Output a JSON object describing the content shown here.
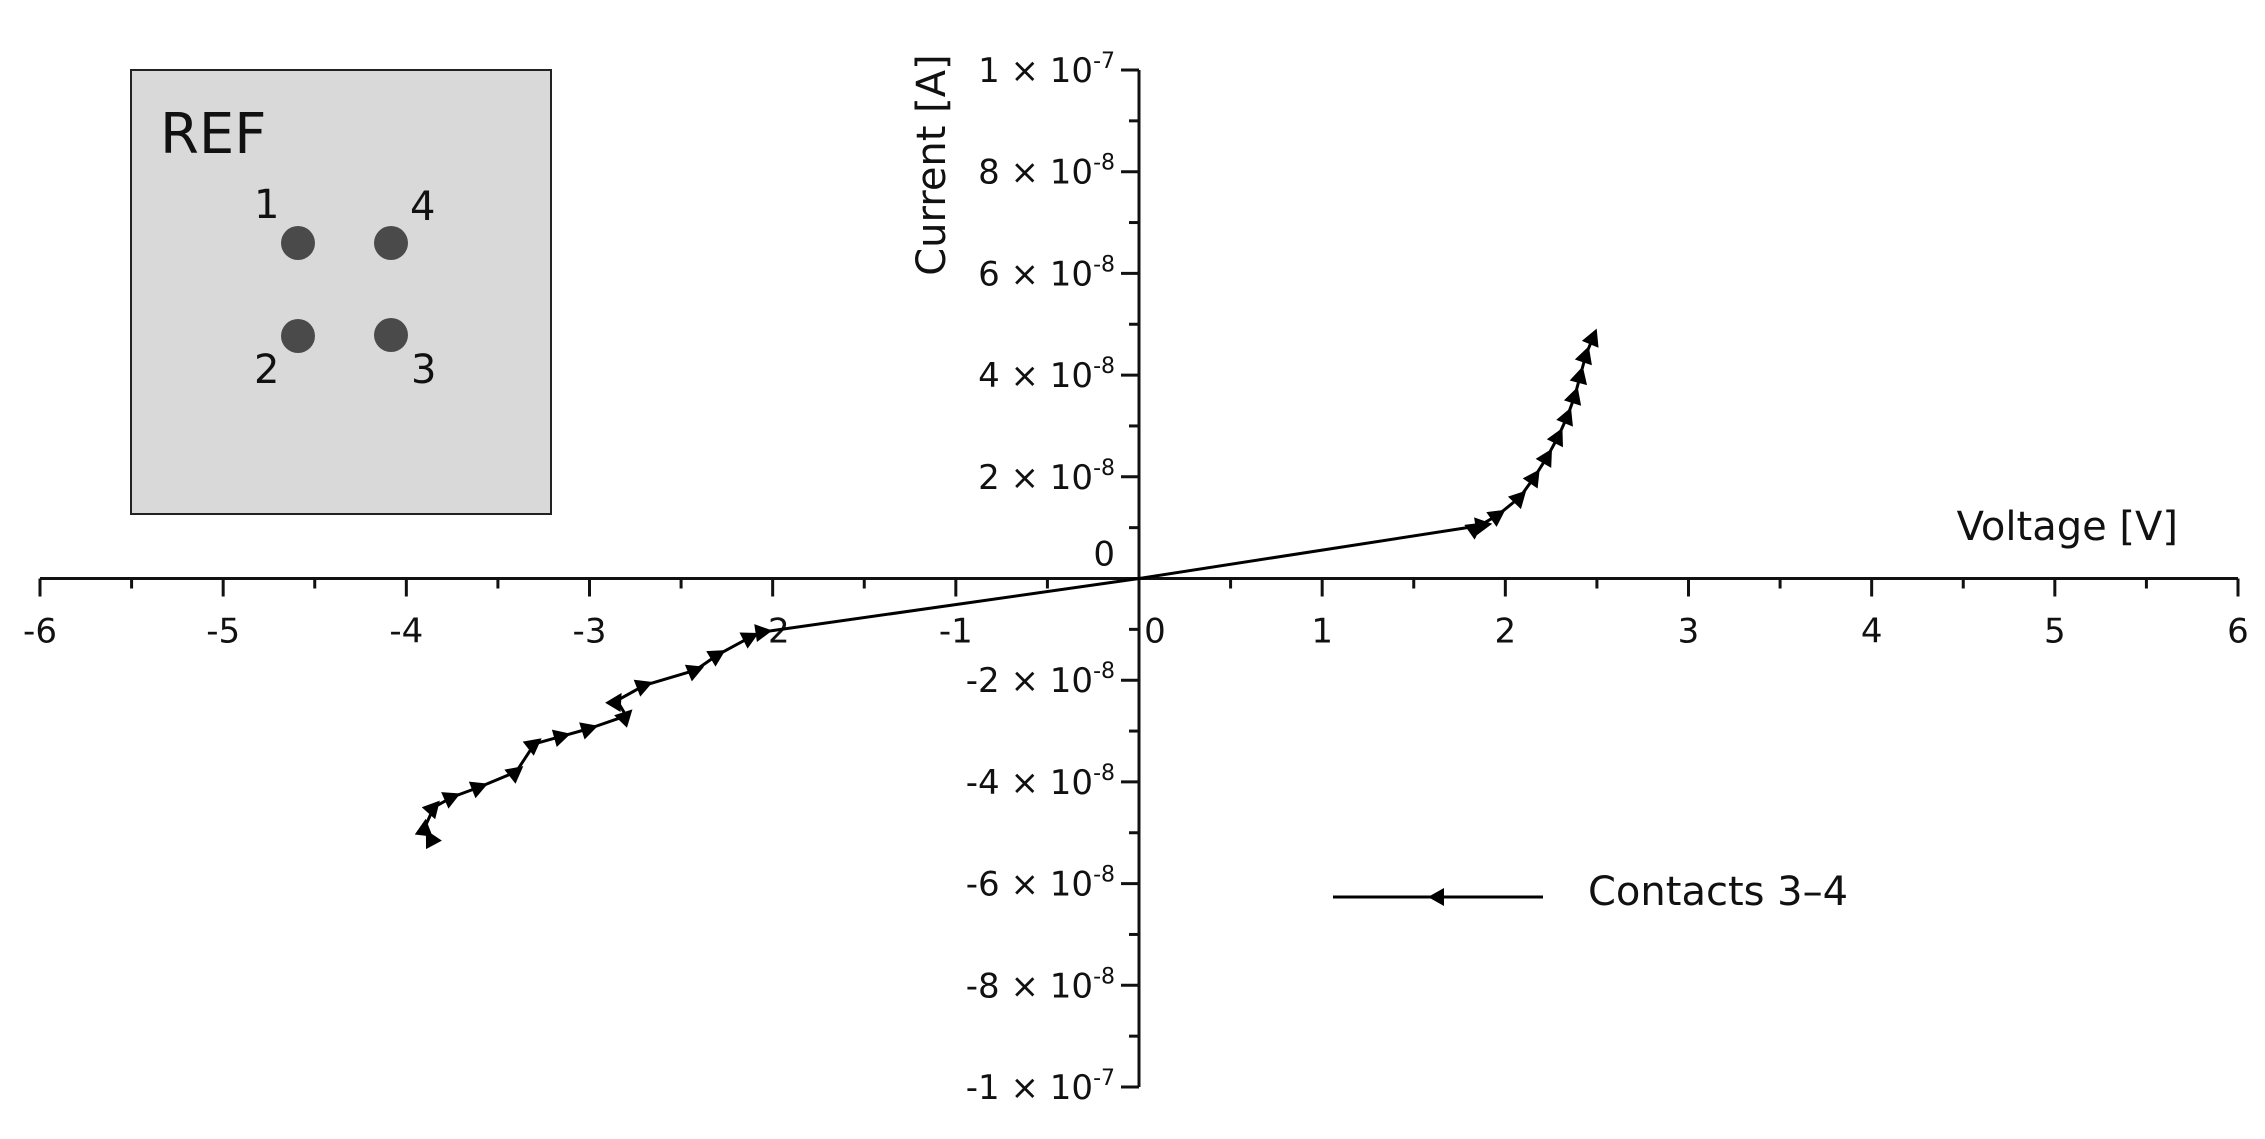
{
  "chart_data": {
    "type": "line",
    "title": "",
    "xlabel": "Voltage [V]",
    "ylabel": "Current [A]",
    "xlim": [
      -6,
      6
    ],
    "ylim": [
      -1e-07,
      1e-07
    ],
    "x_ticks": [
      -6,
      -5,
      -4,
      -3,
      -2,
      -1,
      0,
      1,
      2,
      3,
      4,
      5,
      6
    ],
    "x_tick_labels": [
      "-6",
      "-5",
      "-4",
      "-3",
      "-2",
      "-1",
      "0",
      "1",
      "2",
      "3",
      "4",
      "5",
      "6"
    ],
    "y_ticks": [
      1e-07,
      8e-08,
      6e-08,
      4e-08,
      2e-08,
      0,
      -2e-08,
      -4e-08,
      -6e-08,
      -8e-08,
      -1e-07
    ],
    "y_tick_labels": [
      {
        "mantissa": "1 × 10",
        "exp": "-7"
      },
      {
        "mantissa": "8 × 10",
        "exp": "-8"
      },
      {
        "mantissa": "6 × 10",
        "exp": "-8"
      },
      {
        "mantissa": "4 × 10",
        "exp": "-8"
      },
      {
        "mantissa": "2 × 10",
        "exp": "-8"
      },
      {
        "mantissa": "0",
        "exp": ""
      },
      {
        "mantissa": "-2 × 10",
        "exp": "-8"
      },
      {
        "mantissa": "-4 × 10",
        "exp": "-8"
      },
      {
        "mantissa": "-6 × 10",
        "exp": "-8"
      },
      {
        "mantissa": "-8 × 10",
        "exp": "-8"
      },
      {
        "mantissa": "-1 × 10",
        "exp": "-7"
      }
    ],
    "grid": false,
    "legend_position": "bottom-right",
    "series": [
      {
        "name": "Contacts 3–4",
        "marker": "left-triangle",
        "color": "#000000",
        "x": [
          2.48,
          2.44,
          2.41,
          2.38,
          2.34,
          2.29,
          2.23,
          2.16,
          2.08,
          1.96,
          1.84,
          1.88,
          0.0,
          -2.05,
          -2.12,
          -2.3,
          -2.42,
          -2.7,
          -2.85,
          -2.8,
          -3.0,
          -3.15,
          -3.3,
          -3.4,
          -3.6,
          -3.75,
          -3.85,
          -3.9,
          -3.87
        ],
        "y": [
          4.75e-08,
          4.4e-08,
          4e-08,
          3.6e-08,
          3.2e-08,
          2.8e-08,
          2.4e-08,
          2e-08,
          1.6e-08,
          1.25e-08,
          1e-08,
          1.05e-08,
          0.0,
          -1.05e-08,
          -1.15e-08,
          -1.5e-08,
          -1.8e-08,
          -2.1e-08,
          -2.4e-08,
          -2.7e-08,
          -2.95e-08,
          -3.1e-08,
          -3.25e-08,
          -3.8e-08,
          -4.1e-08,
          -4.3e-08,
          -4.5e-08,
          -4.9e-08,
          -5.1e-08
        ]
      }
    ]
  },
  "inset": {
    "title": "REF",
    "contacts": [
      {
        "label": "1",
        "position": "top-left"
      },
      {
        "label": "4",
        "position": "top-right"
      },
      {
        "label": "2",
        "position": "bottom-left"
      },
      {
        "label": "3",
        "position": "bottom-right"
      }
    ],
    "panel_color": "#d9d9d9",
    "contact_color": "#4a4a4a"
  }
}
